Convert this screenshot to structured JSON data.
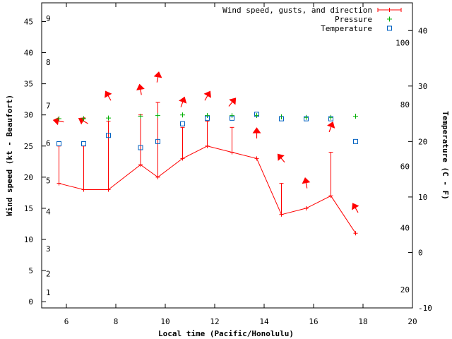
{
  "chart_data": {
    "type": "line",
    "xlabel": "Local time (Pacific/Honolulu)",
    "ylabel": "Wind speed (kt - Beaufort)",
    "y2label": "Temperature (C - F)",
    "xlim": [
      5,
      20
    ],
    "ylim": [
      -1,
      48
    ],
    "y2lim": [
      -10,
      45
    ],
    "x_ticks": [
      "6",
      "8",
      "10",
      "12",
      "14",
      "16",
      "18",
      "20"
    ],
    "y_ticks": [
      "0",
      "5",
      "10",
      "15",
      "20",
      "25",
      "30",
      "35",
      "40",
      "45"
    ],
    "y2_ticks": [
      "-10",
      "0",
      "10",
      "20",
      "30",
      "40"
    ],
    "beaufort_ticks": [
      "1",
      "2",
      "3",
      "4",
      "5",
      "6",
      "7",
      "8",
      "9"
    ],
    "fahrenheit_ticks": [
      "20",
      "40",
      "60",
      "80",
      "100"
    ],
    "legend": [
      "Wind speed, gusts, and direction",
      "Pressure",
      "Temperature"
    ],
    "x": [
      5.7,
      6.7,
      7.7,
      9.0,
      9.7,
      10.7,
      11.7,
      12.7,
      13.7,
      14.7,
      15.7,
      16.7,
      17.7
    ],
    "wind_speed": [
      19,
      18,
      18,
      22,
      20,
      23,
      25,
      24,
      23,
      14,
      15,
      17,
      11
    ],
    "wind_gust": [
      25,
      25,
      29,
      30,
      32,
      28,
      29,
      28,
      23,
      19,
      15,
      24,
      11
    ],
    "wind_direction_deg": [
      280,
      300,
      330,
      350,
      10,
      20,
      30,
      40,
      0,
      320,
      350,
      20,
      330
    ],
    "pressure": [
      29.4,
      29.4,
      29.5,
      29.8,
      29.9,
      30.0,
      29.9,
      29.9,
      29.9,
      29.7,
      29.6,
      29.6,
      29.8
    ],
    "temperature": [
      19.6,
      19.6,
      21.1,
      18.9,
      20.0,
      23.2,
      24.2,
      24.2,
      24.9,
      24.1,
      24.1,
      24.1,
      20.0
    ],
    "colors": {
      "wind": "#ff0000",
      "pressure": "#00b000",
      "temperature": "#0060c0"
    }
  }
}
